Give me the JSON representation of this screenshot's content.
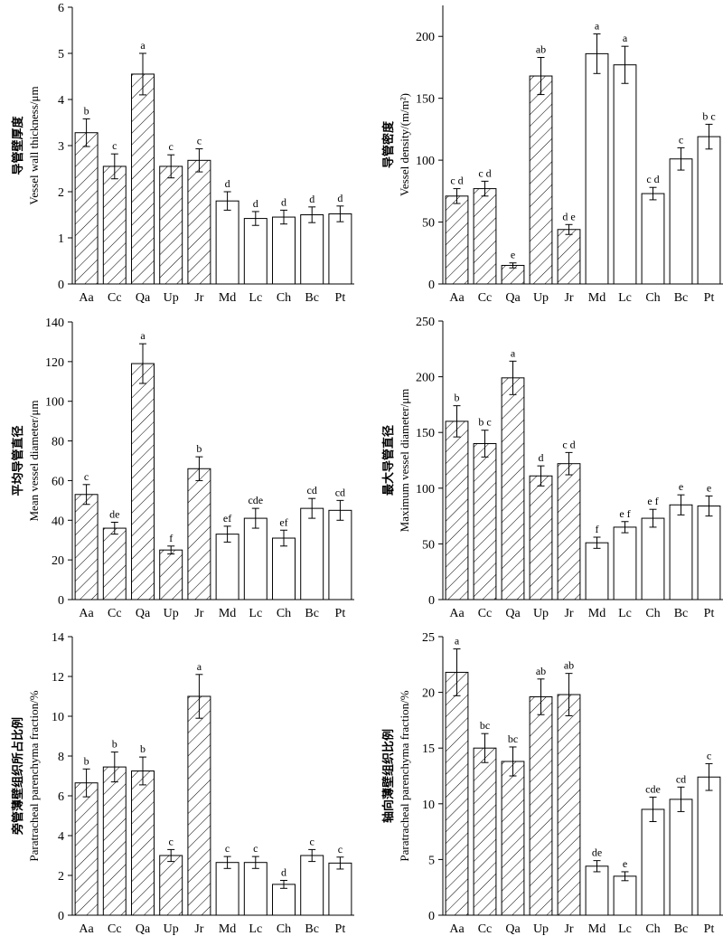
{
  "chart_data": [
    {
      "type": "bar",
      "ylabel_zh": "导管壁厚度",
      "ylabel": "Vessel wall thickness/μm",
      "categories": [
        "Aa",
        "Cc",
        "Qa",
        "Up",
        "Jr",
        "Md",
        "Lc",
        "Ch",
        "Bc",
        "Pt"
      ],
      "values": [
        3.28,
        2.55,
        4.55,
        2.55,
        2.68,
        1.8,
        1.42,
        1.45,
        1.5,
        1.52
      ],
      "errors": [
        0.3,
        0.27,
        0.45,
        0.25,
        0.25,
        0.2,
        0.15,
        0.15,
        0.17,
        0.17
      ],
      "significance": [
        "b",
        "c",
        "a",
        "c",
        "c",
        "d",
        "d",
        "d",
        "d",
        "d"
      ],
      "hatched": [
        true,
        true,
        true,
        true,
        true,
        false,
        false,
        false,
        false,
        false
      ],
      "ylim": [
        0,
        6
      ],
      "yticks": [
        0,
        1,
        2,
        3,
        4,
        5,
        6
      ],
      "grid": false,
      "legend": "none"
    },
    {
      "type": "bar",
      "ylabel_zh": "导管密度",
      "ylabel": "Vessel density/(m/m²)",
      "categories": [
        "Aa",
        "Cc",
        "Qa",
        "Up",
        "Jr",
        "Md",
        "Lc",
        "Ch",
        "Bc",
        "Pt"
      ],
      "values": [
        71,
        77,
        15,
        168,
        44,
        186,
        177,
        73,
        101,
        119
      ],
      "errors": [
        6,
        6,
        2,
        15,
        4,
        16,
        15,
        5,
        9,
        10
      ],
      "significance": [
        "c d",
        "c d",
        "e",
        "ab",
        "d e",
        "a",
        "a",
        "c d",
        "c",
        "b c"
      ],
      "hatched": [
        true,
        true,
        true,
        true,
        true,
        false,
        false,
        false,
        false,
        false
      ],
      "ylim": [
        0,
        225
      ],
      "yticks": [
        0,
        50,
        100,
        150,
        200
      ],
      "grid": false,
      "legend": "none"
    },
    {
      "type": "bar",
      "ylabel_zh": "平均导管直径",
      "ylabel": "Mean vessel diameter/μm",
      "categories": [
        "Aa",
        "Cc",
        "Qa",
        "Up",
        "Jr",
        "Md",
        "Lc",
        "Ch",
        "Bc",
        "Pt"
      ],
      "values": [
        53,
        36,
        119,
        25,
        66,
        33,
        41,
        31,
        46,
        45
      ],
      "errors": [
        5,
        3,
        10,
        2,
        6,
        4,
        5,
        4,
        5,
        5
      ],
      "significance": [
        "c",
        "de",
        "a",
        "f",
        "b",
        "ef",
        "cde",
        "ef",
        "cd",
        "cd"
      ],
      "hatched": [
        true,
        true,
        true,
        true,
        true,
        false,
        false,
        false,
        false,
        false
      ],
      "ylim": [
        0,
        140
      ],
      "yticks": [
        0,
        20,
        40,
        60,
        80,
        100,
        120,
        140
      ],
      "grid": false,
      "legend": "none"
    },
    {
      "type": "bar",
      "ylabel_zh": "最大导管直径",
      "ylabel": "Maximum vessel diameter/μm",
      "categories": [
        "Aa",
        "Cc",
        "Qa",
        "Up",
        "Jr",
        "Md",
        "Lc",
        "Ch",
        "Bc",
        "Pt"
      ],
      "values": [
        160,
        140,
        199,
        111,
        122,
        51,
        65,
        73,
        85,
        84
      ],
      "errors": [
        14,
        12,
        15,
        9,
        10,
        5,
        5,
        8,
        9,
        9
      ],
      "significance": [
        "b",
        "b c",
        "a",
        "d",
        "c d",
        "f",
        "e f",
        "e f",
        "e",
        "e"
      ],
      "hatched": [
        true,
        true,
        true,
        true,
        true,
        false,
        false,
        false,
        false,
        false
      ],
      "ylim": [
        0,
        250
      ],
      "yticks": [
        0,
        50,
        100,
        150,
        200,
        250
      ],
      "grid": false,
      "legend": "none"
    },
    {
      "type": "bar",
      "ylabel_zh": "旁管薄壁组织所占比例",
      "ylabel": "Paratracheal parenchyma fraction/%",
      "categories": [
        "Aa",
        "Cc",
        "Qa",
        "Up",
        "Jr",
        "Md",
        "Lc",
        "Ch",
        "Bc",
        "Pt"
      ],
      "values": [
        6.65,
        7.45,
        7.25,
        3.0,
        11.0,
        2.65,
        2.65,
        1.55,
        3.0,
        2.62
      ],
      "errors": [
        0.7,
        0.75,
        0.7,
        0.3,
        1.1,
        0.3,
        0.3,
        0.2,
        0.3,
        0.3
      ],
      "significance": [
        "b",
        "b",
        "b",
        "c",
        "a",
        "c",
        "c",
        "d",
        "c",
        "c"
      ],
      "hatched": [
        true,
        true,
        true,
        true,
        true,
        false,
        false,
        false,
        false,
        false
      ],
      "ylim": [
        0,
        14
      ],
      "yticks": [
        0,
        2,
        4,
        6,
        8,
        10,
        12,
        14
      ],
      "grid": false,
      "legend": "none"
    },
    {
      "type": "bar",
      "ylabel_zh": "轴向薄壁组织比例",
      "ylabel": "Paratracheal parenchyma fraction/%",
      "categories": [
        "Aa",
        "Cc",
        "Qa",
        "Up",
        "Jr",
        "Md",
        "Lc",
        "Ch",
        "Bc",
        "Pt"
      ],
      "values": [
        21.8,
        15.0,
        13.8,
        19.6,
        19.8,
        4.4,
        3.5,
        9.5,
        10.4,
        12.4
      ],
      "errors": [
        2.1,
        1.3,
        1.3,
        1.6,
        1.9,
        0.5,
        0.4,
        1.1,
        1.1,
        1.2
      ],
      "significance": [
        "a",
        "bc",
        "bc",
        "ab",
        "ab",
        "de",
        "e",
        "cde",
        "cd",
        "c"
      ],
      "hatched": [
        true,
        true,
        true,
        true,
        true,
        false,
        false,
        false,
        false,
        false
      ],
      "ylim": [
        0,
        25
      ],
      "yticks": [
        0,
        5,
        10,
        15,
        20,
        25
      ],
      "grid": false,
      "legend": "none"
    }
  ]
}
